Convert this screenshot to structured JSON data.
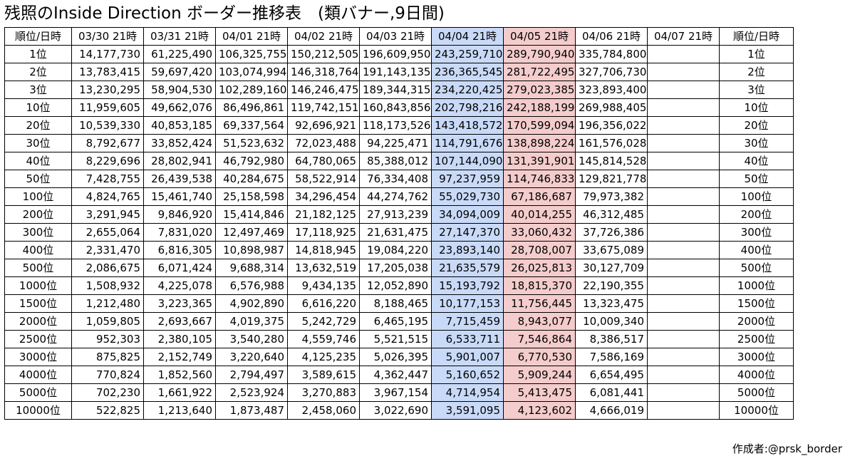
{
  "title": "残照のInside Direction ボーダー推移表　(類バナー,9日間)",
  "table": {
    "headers": [
      "順位/日時",
      "03/30 21時",
      "03/31 21時",
      "04/01 21時",
      "04/02 21時",
      "04/03 21時",
      "04/04 21時",
      "04/05 21時",
      "04/06 21時",
      "04/07 21時",
      "順位/日時"
    ],
    "highlight_colors": {
      "04/04 21時": "#c9daf8",
      "04/05 21時": "#f4cccc"
    },
    "rows": [
      {
        "rank": "1位",
        "values": [
          "14,177,730",
          "61,225,490",
          "106,325,755",
          "150,212,505",
          "196,609,950",
          "243,259,710",
          "289,790,940",
          "335,784,800",
          ""
        ],
        "rank_end": "1位"
      },
      {
        "rank": "2位",
        "values": [
          "13,783,415",
          "59,697,420",
          "103,074,994",
          "146,318,764",
          "191,143,135",
          "236,365,545",
          "281,722,495",
          "327,706,730",
          ""
        ],
        "rank_end": "2位"
      },
      {
        "rank": "3位",
        "values": [
          "13,230,295",
          "58,904,530",
          "102,289,160",
          "146,246,475",
          "189,344,315",
          "234,220,425",
          "279,023,385",
          "323,893,400",
          ""
        ],
        "rank_end": "3位"
      },
      {
        "rank": "10位",
        "values": [
          "11,959,605",
          "49,662,076",
          "86,496,861",
          "119,742,151",
          "160,843,856",
          "202,798,216",
          "242,188,199",
          "269,988,405",
          ""
        ],
        "rank_end": "10位"
      },
      {
        "rank": "20位",
        "values": [
          "10,539,330",
          "40,853,185",
          "69,337,564",
          "92,696,921",
          "118,173,526",
          "143,418,572",
          "170,599,094",
          "196,356,022",
          ""
        ],
        "rank_end": "20位"
      },
      {
        "rank": "30位",
        "values": [
          "8,792,677",
          "33,852,424",
          "51,523,632",
          "72,023,488",
          "94,225,471",
          "114,791,676",
          "138,898,224",
          "161,576,028",
          ""
        ],
        "rank_end": "30位"
      },
      {
        "rank": "40位",
        "values": [
          "8,229,696",
          "28,802,941",
          "46,792,980",
          "64,780,065",
          "85,388,012",
          "107,144,090",
          "131,391,901",
          "145,814,528",
          ""
        ],
        "rank_end": "40位"
      },
      {
        "rank": "50位",
        "values": [
          "7,428,755",
          "26,439,538",
          "40,284,675",
          "58,522,914",
          "76,334,408",
          "97,237,959",
          "114,746,833",
          "129,821,778",
          ""
        ],
        "rank_end": "50位"
      },
      {
        "rank": "100位",
        "values": [
          "4,824,765",
          "15,461,740",
          "25,158,598",
          "34,296,454",
          "44,274,762",
          "55,029,730",
          "67,186,687",
          "79,973,382",
          ""
        ],
        "rank_end": "100位"
      },
      {
        "rank": "200位",
        "values": [
          "3,291,945",
          "9,846,920",
          "15,414,846",
          "21,182,125",
          "27,913,239",
          "34,094,009",
          "40,014,255",
          "46,312,485",
          ""
        ],
        "rank_end": "200位"
      },
      {
        "rank": "300位",
        "values": [
          "2,655,064",
          "7,831,020",
          "12,497,469",
          "17,118,925",
          "21,631,475",
          "27,147,370",
          "33,060,432",
          "37,726,386",
          ""
        ],
        "rank_end": "300位"
      },
      {
        "rank": "400位",
        "values": [
          "2,331,470",
          "6,816,305",
          "10,898,987",
          "14,818,945",
          "19,084,220",
          "23,893,140",
          "28,708,007",
          "33,675,089",
          ""
        ],
        "rank_end": "400位"
      },
      {
        "rank": "500位",
        "values": [
          "2,086,675",
          "6,071,424",
          "9,688,314",
          "13,632,519",
          "17,205,038",
          "21,635,579",
          "26,025,813",
          "30,127,709",
          ""
        ],
        "rank_end": "500位"
      },
      {
        "rank": "1000位",
        "values": [
          "1,508,932",
          "4,225,078",
          "6,576,988",
          "9,434,135",
          "12,052,890",
          "15,193,792",
          "18,815,370",
          "22,190,355",
          ""
        ],
        "rank_end": "1000位"
      },
      {
        "rank": "1500位",
        "values": [
          "1,212,480",
          "3,223,365",
          "4,902,890",
          "6,616,220",
          "8,188,465",
          "10,177,153",
          "11,756,445",
          "13,323,475",
          ""
        ],
        "rank_end": "1500位"
      },
      {
        "rank": "2000位",
        "values": [
          "1,059,805",
          "2,693,667",
          "4,019,375",
          "5,242,729",
          "6,465,195",
          "7,715,459",
          "8,943,077",
          "10,009,340",
          ""
        ],
        "rank_end": "2000位"
      },
      {
        "rank": "2500位",
        "values": [
          "952,303",
          "2,380,105",
          "3,540,280",
          "4,559,746",
          "5,521,515",
          "6,533,711",
          "7,546,864",
          "8,386,517",
          ""
        ],
        "rank_end": "2500位"
      },
      {
        "rank": "3000位",
        "values": [
          "875,825",
          "2,152,749",
          "3,220,640",
          "4,125,235",
          "5,026,395",
          "5,901,007",
          "6,770,530",
          "7,586,169",
          ""
        ],
        "rank_end": "3000位"
      },
      {
        "rank": "4000位",
        "values": [
          "770,824",
          "1,852,560",
          "2,794,497",
          "3,589,615",
          "4,362,447",
          "5,160,652",
          "5,909,244",
          "6,654,495",
          ""
        ],
        "rank_end": "4000位"
      },
      {
        "rank": "5000位",
        "values": [
          "702,230",
          "1,661,922",
          "2,523,924",
          "3,270,883",
          "3,967,154",
          "4,714,954",
          "5,413,475",
          "6,081,441",
          ""
        ],
        "rank_end": "5000位"
      },
      {
        "rank": "10000位",
        "values": [
          "522,825",
          "1,213,640",
          "1,873,487",
          "2,458,060",
          "3,022,690",
          "3,591,095",
          "4,123,602",
          "4,666,019",
          ""
        ],
        "rank_end": "10000位"
      }
    ]
  },
  "author": "作成者:@prsk_border"
}
